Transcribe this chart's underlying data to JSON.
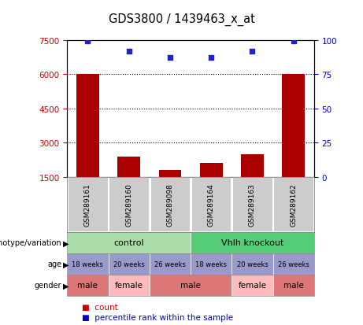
{
  "title": "GDS3800 / 1439463_x_at",
  "samples": [
    "GSM289161",
    "GSM289160",
    "GSM289098",
    "GSM289164",
    "GSM289163",
    "GSM289162"
  ],
  "counts": [
    6000,
    2400,
    1800,
    2100,
    2500,
    6000
  ],
  "percentiles": [
    99,
    92,
    87,
    87,
    92,
    99
  ],
  "ylim_left": [
    1500,
    7500
  ],
  "ylim_right": [
    0,
    100
  ],
  "yticks_left": [
    1500,
    3000,
    4500,
    6000,
    7500
  ],
  "yticks_right": [
    0,
    25,
    50,
    75,
    100
  ],
  "bar_color": "#aa0000",
  "dot_color": "#2222cc",
  "genotype_control": "control",
  "genotype_knockout": "Vhlh knockout",
  "genotype_control_color": "#aaddaa",
  "genotype_knockout_color": "#55cc77",
  "age_labels": [
    "18 weeks",
    "20 weeks",
    "26 weeks",
    "18 weeks",
    "20 weeks",
    "26 weeks"
  ],
  "age_color": "#9999cc",
  "gender_male_color": "#dd7777",
  "gender_female_color": "#ffbbbb",
  "sample_bg_color": "#cccccc",
  "label_color_left": "#cc0000",
  "label_color_right": "#0000cc",
  "legend_count_color": "#cc0000",
  "legend_percentile_color": "#0000cc",
  "gender_groups": [
    {
      "label": "male",
      "start": 0,
      "end": 0,
      "color": "#dd7777"
    },
    {
      "label": "female",
      "start": 1,
      "end": 1,
      "color": "#ffbbbb"
    },
    {
      "label": "male",
      "start": 2,
      "end": 3,
      "color": "#dd7777"
    },
    {
      "label": "female",
      "start": 4,
      "end": 4,
      "color": "#ffbbbb"
    },
    {
      "label": "male",
      "start": 5,
      "end": 5,
      "color": "#dd7777"
    }
  ]
}
